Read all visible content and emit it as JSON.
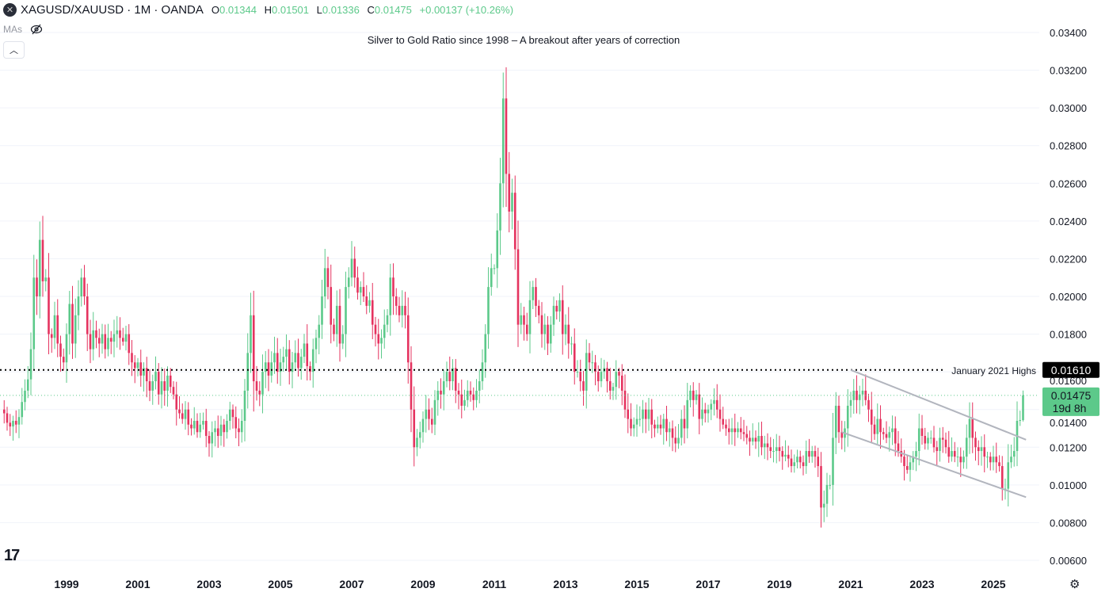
{
  "header": {
    "symbol_icon": "x-circle-icon",
    "symbol": "XAGUSD/XAUUSD · 1M · OANDA",
    "o_label": "O",
    "o": "0.01344",
    "h_label": "H",
    "h": "0.01501",
    "l_label": "L",
    "l": "0.01336",
    "c_label": "C",
    "c": "0.01475",
    "change": "+0.00137 (+10.26%)",
    "mas_label": "MAs",
    "mas_icon": "eye-off-icon",
    "collapse_icon": "chevron-up-icon"
  },
  "colors": {
    "up": "#5cc98a",
    "down": "#e5335f",
    "grid": "#f0f3fa",
    "text": "#131722",
    "trendline": "#b2b5be"
  },
  "chart_data": {
    "type": "candlestick",
    "title": "Silver to Gold Ratio since 1998 – A breakout after years of correction",
    "interval": "monthly",
    "start": "1997-04",
    "closes": [
      0.0138,
      0.0133,
      0.0131,
      0.0134,
      0.0132,
      0.0136,
      0.0144,
      0.015,
      0.0156,
      0.0172,
      0.021,
      0.02,
      0.023,
      0.0208,
      0.021,
      0.018,
      0.0178,
      0.019,
      0.0175,
      0.0168,
      0.0165,
      0.018,
      0.0196,
      0.0175,
      0.019,
      0.02,
      0.021,
      0.02,
      0.018,
      0.0172,
      0.0182,
      0.0178,
      0.0175,
      0.018,
      0.0172,
      0.0178,
      0.0176,
      0.018,
      0.0182,
      0.0178,
      0.0176,
      0.018,
      0.017,
      0.0165,
      0.0162,
      0.0165,
      0.0158,
      0.0162,
      0.0155,
      0.015,
      0.0155,
      0.016,
      0.0148,
      0.0155,
      0.015,
      0.0158,
      0.0152,
      0.0148,
      0.014,
      0.0138,
      0.0135,
      0.014,
      0.0132,
      0.013,
      0.0134,
      0.0128,
      0.0132,
      0.0134,
      0.0126,
      0.0122,
      0.0128,
      0.013,
      0.0126,
      0.0132,
      0.0128,
      0.0134,
      0.014,
      0.0136,
      0.013,
      0.0128,
      0.0134,
      0.015,
      0.017,
      0.019,
      0.0155,
      0.015,
      0.0148,
      0.016,
      0.0165,
      0.0158,
      0.0165,
      0.017,
      0.016,
      0.0165,
      0.0168,
      0.0172,
      0.016,
      0.0165,
      0.017,
      0.0162,
      0.0168,
      0.0175,
      0.0163,
      0.016,
      0.0172,
      0.0178,
      0.0185,
      0.02,
      0.0215,
      0.0205,
      0.0185,
      0.018,
      0.0195,
      0.0175,
      0.018,
      0.0205,
      0.021,
      0.022,
      0.021,
      0.0202,
      0.0205,
      0.02,
      0.0195,
      0.0198,
      0.0185,
      0.018,
      0.0175,
      0.0178,
      0.0185,
      0.019,
      0.021,
      0.02,
      0.0195,
      0.019,
      0.0195,
      0.019,
      0.0165,
      0.014,
      0.012,
      0.0125,
      0.0128,
      0.0135,
      0.014,
      0.0135,
      0.0132,
      0.0145,
      0.015,
      0.0148,
      0.0155,
      0.016,
      0.0155,
      0.0162,
      0.015,
      0.0148,
      0.0142,
      0.0145,
      0.015,
      0.0148,
      0.0145,
      0.015,
      0.0155,
      0.0165,
      0.018,
      0.0205,
      0.0215,
      0.0215,
      0.0235,
      0.026,
      0.0305,
      0.0265,
      0.0245,
      0.0255,
      0.0225,
      0.0185,
      0.019,
      0.0185,
      0.018,
      0.0198,
      0.0205,
      0.0195,
      0.019,
      0.018,
      0.0185,
      0.0175,
      0.0185,
      0.0195,
      0.0192,
      0.0198,
      0.018,
      0.0185,
      0.0175,
      0.0175,
      0.016,
      0.016,
      0.0155,
      0.015,
      0.017,
      0.0165,
      0.0165,
      0.016,
      0.0155,
      0.016,
      0.0162,
      0.0155,
      0.015,
      0.0152,
      0.016,
      0.0158,
      0.015,
      0.014,
      0.0135,
      0.013,
      0.0132,
      0.0135,
      0.0135,
      0.014,
      0.0135,
      0.014,
      0.0132,
      0.013,
      0.0132,
      0.013,
      0.0135,
      0.0128,
      0.013,
      0.0125,
      0.0122,
      0.0125,
      0.0135,
      0.013,
      0.0145,
      0.015,
      0.0145,
      0.0148,
      0.0135,
      0.014,
      0.0138,
      0.014,
      0.0143,
      0.0145,
      0.014,
      0.0135,
      0.0132,
      0.013,
      0.0128,
      0.013,
      0.0128,
      0.013,
      0.0128,
      0.0127,
      0.0125,
      0.0123,
      0.0125,
      0.0123,
      0.0126,
      0.012,
      0.0122,
      0.012,
      0.0118,
      0.0118,
      0.012,
      0.0118,
      0.0115,
      0.0116,
      0.0114,
      0.011,
      0.0112,
      0.0115,
      0.0112,
      0.011,
      0.0118,
      0.0115,
      0.0118,
      0.0115,
      0.011,
      0.0088,
      0.009,
      0.01,
      0.01,
      0.0125,
      0.0142,
      0.0128,
      0.0125,
      0.013,
      0.0142,
      0.0145,
      0.015,
      0.0145,
      0.0148,
      0.015,
      0.0145,
      0.014,
      0.0132,
      0.0127,
      0.0135,
      0.0128,
      0.0127,
      0.0125,
      0.0128,
      0.013,
      0.0122,
      0.0118,
      0.0115,
      0.011,
      0.0108,
      0.0112,
      0.0115,
      0.0118,
      0.013,
      0.0126,
      0.0122,
      0.0125,
      0.0125,
      0.012,
      0.0118,
      0.0125,
      0.0124,
      0.012,
      0.0115,
      0.0118,
      0.0115,
      0.0115,
      0.0112,
      0.0115,
      0.0125,
      0.0135,
      0.0125,
      0.012,
      0.0118,
      0.012,
      0.0115,
      0.0115,
      0.0112,
      0.0115,
      0.0112,
      0.011,
      0.0098,
      0.0098,
      0.0112,
      0.0115,
      0.0118,
      0.0134,
      0.01344,
      0.01475
    ],
    "last_candle": {
      "o": 0.01344,
      "h": 0.01501,
      "l": 0.01336,
      "c": 0.01475
    },
    "y_ticks": [
      "0.03400",
      "0.03200",
      "0.03000",
      "0.02800",
      "0.02600",
      "0.02400",
      "0.02200",
      "0.02000",
      "0.01800",
      "0.01600",
      "0.01400",
      "0.01200",
      "0.01000",
      "0.00800",
      "0.00600"
    ],
    "x_ticks": [
      "1999",
      "2001",
      "2003",
      "2005",
      "2007",
      "2009",
      "2011",
      "2013",
      "2015",
      "2017",
      "2019",
      "2021",
      "2023",
      "2025"
    ],
    "ylim": [
      0.006,
      0.034
    ],
    "grid": true,
    "horizontal_line": {
      "value": 0.0161,
      "label": "January 2021 Highs",
      "price_label": "0.01610"
    },
    "current_price": {
      "value": 0.01475,
      "label": "0.01475",
      "countdown": "19d 8h"
    },
    "trendlines": [
      {
        "from": [
          "2021-01",
          0.0161
        ],
        "to": [
          "2025-12",
          0.0124
        ]
      },
      {
        "from": [
          "2020-10",
          0.0128
        ],
        "to": [
          "2025-12",
          0.00935
        ]
      }
    ]
  },
  "footer": {
    "logo": "TradingView",
    "logo_icon": "tradingview-logo-icon",
    "settings_icon": "gear-icon"
  }
}
